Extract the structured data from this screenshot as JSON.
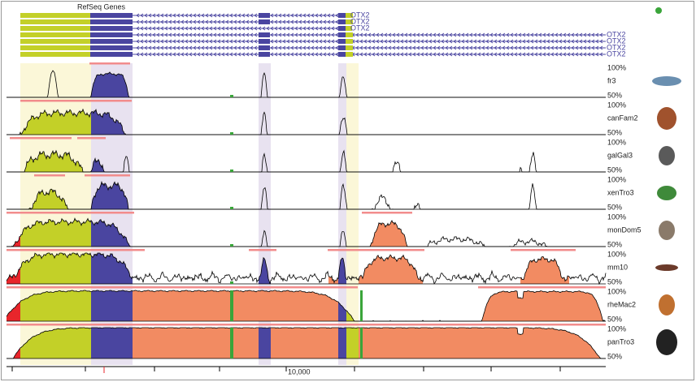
{
  "header": {
    "title": "RefSeq Genes"
  },
  "genes": [
    {
      "label": "OTX2"
    },
    {
      "label": "OTX2"
    },
    {
      "label": "OTX2"
    },
    {
      "label": "OTX2"
    },
    {
      "label": "OTX2"
    },
    {
      "label": "OTX2"
    },
    {
      "label": "OTX2"
    }
  ],
  "tracks": [
    {
      "name": "fr3",
      "top_label": "100%",
      "bottom_label": "50%"
    },
    {
      "name": "canFam2",
      "top_label": "100%",
      "bottom_label": "50%"
    },
    {
      "name": "galGal3",
      "top_label": "100%",
      "bottom_label": "50%"
    },
    {
      "name": "xenTro3",
      "top_label": "100%",
      "bottom_label": "50%"
    },
    {
      "name": "monDom5",
      "top_label": "100%",
      "bottom_label": "50%"
    },
    {
      "name": "mm10",
      "top_label": "100%",
      "bottom_label": "50%"
    },
    {
      "name": "rheMac2",
      "top_label": "100%",
      "bottom_label": "50%"
    },
    {
      "name": "panTro3",
      "top_label": "100%",
      "bottom_label": "50%"
    }
  ],
  "axis": {
    "label": "10,000"
  }
}
